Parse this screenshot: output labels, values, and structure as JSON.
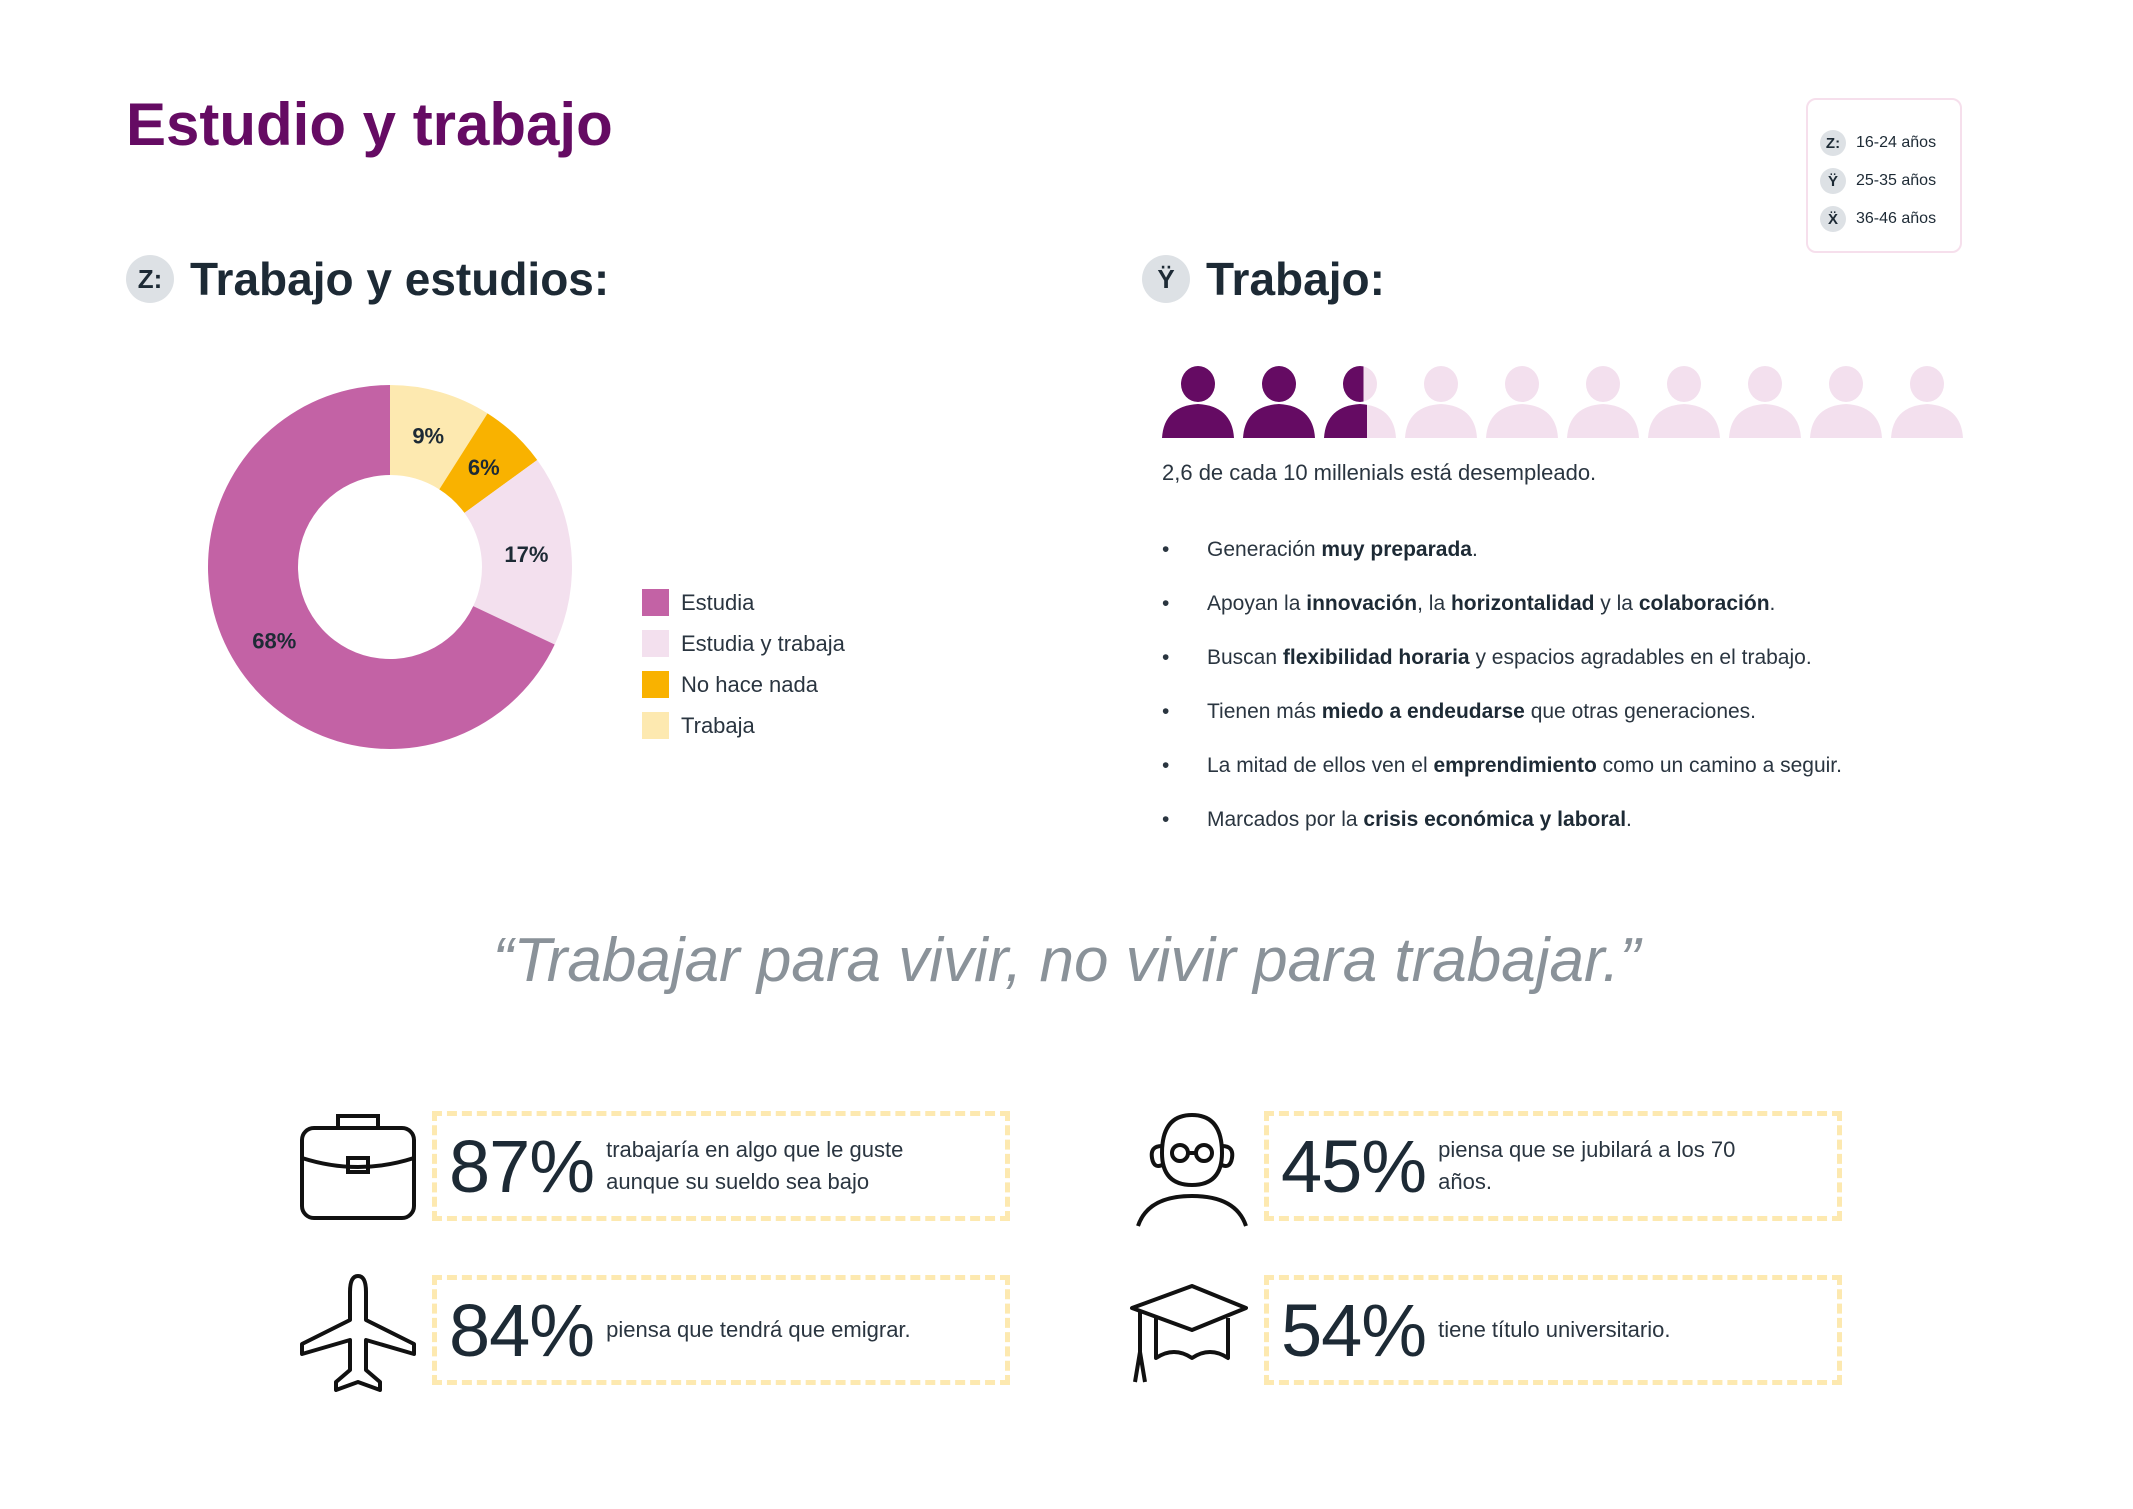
{
  "title": "Estudio y trabajo",
  "age_legend": [
    {
      "badge": "Z:",
      "label": "16-24 años"
    },
    {
      "badge": "Ÿ",
      "label": "25-35 años"
    },
    {
      "badge": "Ẍ",
      "label": "36-46 años"
    }
  ],
  "section_z": {
    "badge": "Z:",
    "title": "Trabajo y estudios:"
  },
  "section_y": {
    "badge": "Ÿ",
    "title": "Trabajo:",
    "unemployed_ratio": 2.6,
    "total_people": 10,
    "caption": "2,6 de cada 10 millenials está desempleado.",
    "bullets": [
      {
        "pre": "Generación ",
        "bold": "muy preparada",
        "post": "."
      },
      {
        "html": "Apoyan la <b>innovación</b>, la <b>horizontalidad</b> y la <b>colaboración</b>."
      },
      {
        "pre": "Buscan ",
        "bold": "flexibilidad horaria",
        "post": " y espacios agradables en el trabajo."
      },
      {
        "pre": "Tienen más ",
        "bold": "miedo a endeudarse",
        "post": " que otras generaciones."
      },
      {
        "pre": "La mitad de ellos ven el ",
        "bold": "emprendimiento",
        "post": " como un camino a seguir."
      },
      {
        "pre": "Marcados por la ",
        "bold": "crisis económica y laboral",
        "post": "."
      }
    ]
  },
  "chart_data": {
    "type": "pie",
    "donut": true,
    "title": "Trabajo y estudios:",
    "slices": [
      {
        "label": "Trabaja",
        "value": 9,
        "text": "9%",
        "color": "#fde9b0"
      },
      {
        "label": "No hace nada",
        "value": 6,
        "text": "6%",
        "color": "#f9b200"
      },
      {
        "label": "Estudia y trabaja",
        "value": 17,
        "text": "17%",
        "color": "#f3e0ee"
      },
      {
        "label": "Estudia",
        "value": 68,
        "text": "68%",
        "color": "#c362a5"
      }
    ],
    "legend": [
      "Estudia",
      "Estudia y trabaja",
      "No hace nada",
      "Trabaja"
    ],
    "legend_placement": "right"
  },
  "quote": "“Trabajar para vivir, no vivir para trabajar.”",
  "stats": [
    {
      "icon": "briefcase-icon",
      "number": "87%",
      "text": "trabajaría en algo que le guste aunque su sueldo sea bajo"
    },
    {
      "icon": "old-man-icon",
      "number": "45%",
      "text": "piensa que se jubilará a los 70 años."
    },
    {
      "icon": "airplane-icon",
      "number": "84%",
      "text": "piensa que tendrá que emigrar."
    },
    {
      "icon": "graduation-cap-icon",
      "number": "54%",
      "text": "tiene título universitario."
    }
  ],
  "colors": {
    "accent": "#650b63",
    "person_on": "#650b63",
    "person_off": "#f3e0ee"
  }
}
